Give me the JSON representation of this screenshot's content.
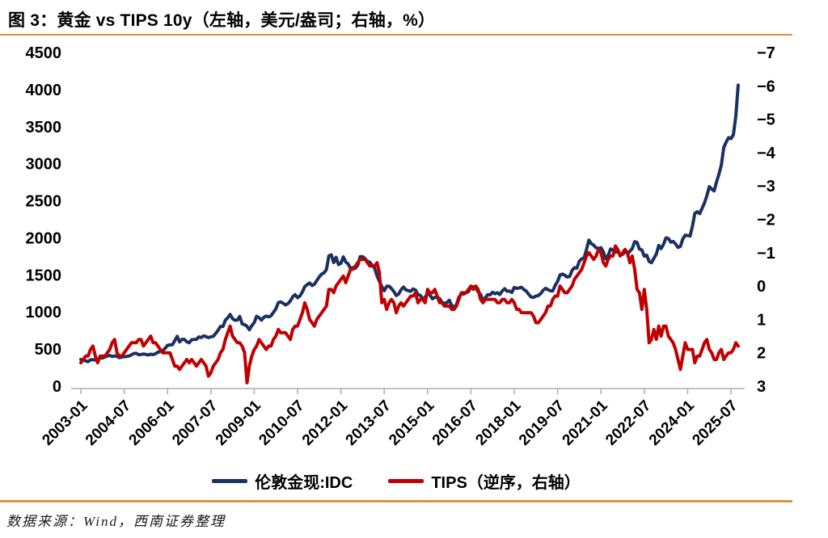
{
  "header": {
    "title": "图 3：黄金 vs TIPS 10y（左轴，美元/盎司；右轴，%）"
  },
  "footer": {
    "source": "数据来源：Wind，西南证券整理"
  },
  "colors": {
    "gold_line": "#1B3161",
    "tips_line": "#C00000",
    "divider": "#D9953F",
    "axis_line": "#ADADAD",
    "tick_text": "#000000"
  },
  "chart_data": {
    "type": "line",
    "title": "黄金 vs TIPS 10y（左轴，美元/盎司；右轴，%）",
    "x_frequency": "monthly",
    "x_start": "2003-01",
    "x_end": "2025-10",
    "x_tick_labels": [
      "2003-01",
      "2004-07",
      "2006-01",
      "2007-07",
      "2009-01",
      "2010-07",
      "2012-01",
      "2013-07",
      "2015-01",
      "2016-07",
      "2018-01",
      "2019-07",
      "2021-01",
      "2022-07",
      "2024-01",
      "2025-07"
    ],
    "x_tick_step_months": 18,
    "grid": "off",
    "legend_position": "bottom",
    "left_axis": {
      "label": "美元/盎司",
      "range": [
        0,
        4500
      ],
      "ticks": [
        4500,
        4000,
        3500,
        3000,
        2500,
        2000,
        1500,
        1000,
        500,
        0
      ]
    },
    "right_axis": {
      "label": "%",
      "range": [
        -7,
        3
      ],
      "inverted": true,
      "ticks": [
        -7,
        -6,
        -5,
        -4,
        -3,
        -2,
        -1,
        0,
        1,
        2,
        3
      ]
    },
    "series": [
      {
        "name": "伦敦金现:IDC",
        "axis": "left",
        "color": "#1B3161",
        "values": [
          360,
          352,
          340,
          330,
          355,
          356,
          352,
          362,
          379,
          380,
          392,
          408,
          414,
          400,
          408,
          402,
          384,
          392,
          398,
          401,
          406,
          422,
          440,
          442,
          424,
          426,
          434,
          428,
          420,
          432,
          424,
          438,
          456,
          470,
          477,
          510,
          550,
          556,
          558,
          612,
          672,
          596,
          632,
          630,
          598,
          585,
          627,
          630,
          631,
          665,
          655,
          679,
          667,
          655,
          665,
          672,
          712,
          754,
          806,
          803,
          890,
          922,
          968,
          910,
          889,
          890,
          940,
          839,
          829,
          807,
          760,
          816,
          858,
          943,
          924,
          890,
          928,
          946,
          934,
          949,
          996,
          1043,
          1127,
          1135,
          1118,
          1095,
          1113,
          1149,
          1205,
          1233,
          1193,
          1216,
          1271,
          1342,
          1370,
          1391,
          1356,
          1374,
          1424,
          1473,
          1511,
          1529,
          1573,
          1756,
          1772,
          1666,
          1739,
          1640,
          1656,
          1743,
          1674,
          1650,
          1586,
          1599,
          1590,
          1630,
          1745,
          1747,
          1721,
          1684,
          1671,
          1628,
          1592,
          1487,
          1414,
          1343,
          1286,
          1347,
          1348,
          1316,
          1276,
          1221,
          1244,
          1300,
          1336,
          1299,
          1288,
          1279,
          1311,
          1296,
          1237,
          1222,
          1176,
          1200,
          1251,
          1227,
          1178,
          1198,
          1199,
          1181,
          1128,
          1118,
          1125,
          1159,
          1086,
          1068,
          1097,
          1199,
          1246,
          1242,
          1260,
          1276,
          1337,
          1340,
          1327,
          1272,
          1238,
          1157,
          1192,
          1234,
          1231,
          1266,
          1246,
          1260,
          1236,
          1283,
          1314,
          1280,
          1282,
          1264,
          1331,
          1318,
          1325,
          1334,
          1303,
          1281,
          1238,
          1202,
          1198,
          1215,
          1222,
          1250,
          1292,
          1320,
          1301,
          1286,
          1284,
          1359,
          1413,
          1500,
          1511,
          1495,
          1471,
          1479,
          1561,
          1597,
          1591,
          1683,
          1716,
          1732,
          1843,
          1969,
          1922,
          1900,
          1866,
          1858,
          1868,
          1811,
          1718,
          1762,
          1850,
          1835,
          1807,
          1814,
          1777,
          1777,
          1820,
          1787,
          1817,
          1856,
          1948,
          1937,
          1848,
          1837,
          1753,
          1766,
          1681,
          1665,
          1725,
          1781,
          1898,
          1855,
          1913,
          1999,
          1992,
          1942,
          1951,
          1918,
          1871,
          1885,
          1984,
          2036,
          2031,
          2024,
          2160,
          2331,
          2351,
          2327,
          2398,
          2470,
          2568,
          2690,
          2657,
          2633,
          2752,
          2858,
          2983,
          3218,
          3289,
          3352,
          3338,
          3391,
          3643,
          4060
        ]
      },
      {
        "name": "TIPS（逆序，右轴）",
        "axis": "right",
        "color": "#C00000",
        "values": [
          2.3,
          2.2,
          2.1,
          2.1,
          1.9,
          1.8,
          2.1,
          2.3,
          2.1,
          2.1,
          2.1,
          2.0,
          1.9,
          1.7,
          1.6,
          2.0,
          2.1,
          2.1,
          2.0,
          1.9,
          1.8,
          1.7,
          1.7,
          1.7,
          1.6,
          1.6,
          1.8,
          1.7,
          1.6,
          1.5,
          1.7,
          1.7,
          1.8,
          1.9,
          2.0,
          2.0,
          2.0,
          2.0,
          2.2,
          2.4,
          2.4,
          2.5,
          2.4,
          2.3,
          2.2,
          2.3,
          2.2,
          2.3,
          2.4,
          2.3,
          2.2,
          2.3,
          2.4,
          2.7,
          2.6,
          2.4,
          2.3,
          2.2,
          2.0,
          1.9,
          1.6,
          1.4,
          1.2,
          1.5,
          1.6,
          1.7,
          1.7,
          1.8,
          2.0,
          2.9,
          2.4,
          2.1,
          1.9,
          1.8,
          1.6,
          1.7,
          1.8,
          1.9,
          1.8,
          1.8,
          1.6,
          1.5,
          1.3,
          1.4,
          1.4,
          1.4,
          1.5,
          1.6,
          1.3,
          1.2,
          1.2,
          1.0,
          0.8,
          0.5,
          0.7,
          1.0,
          1.1,
          1.2,
          1.0,
          0.9,
          0.8,
          0.7,
          0.6,
          0.1,
          0.1,
          0.2,
          0.0,
          -0.1,
          -0.2,
          -0.3,
          -0.1,
          -0.3,
          -0.5,
          -0.5,
          -0.6,
          -0.7,
          -0.8,
          -0.8,
          -0.8,
          -0.7,
          -0.6,
          -0.6,
          -0.6,
          -0.7,
          -0.4,
          0.5,
          0.4,
          0.7,
          0.5,
          0.4,
          0.5,
          0.8,
          0.6,
          0.5,
          0.6,
          0.5,
          0.4,
          0.3,
          0.3,
          0.2,
          0.5,
          0.4,
          0.4,
          0.5,
          0.1,
          0.2,
          0.2,
          0.1,
          0.3,
          0.5,
          0.5,
          0.6,
          0.6,
          0.6,
          0.7,
          0.7,
          0.6,
          0.4,
          0.2,
          0.2,
          0.2,
          0.1,
          0.0,
          0.1,
          0.0,
          0.1,
          0.4,
          0.5,
          0.4,
          0.4,
          0.4,
          0.4,
          0.4,
          0.5,
          0.5,
          0.4,
          0.4,
          0.5,
          0.5,
          0.4,
          0.5,
          0.7,
          0.7,
          0.8,
          0.8,
          0.8,
          0.8,
          0.8,
          0.9,
          1.1,
          1.1,
          1.0,
          0.9,
          0.8,
          0.6,
          0.6,
          0.4,
          0.3,
          0.3,
          0.0,
          0.1,
          0.2,
          0.2,
          0.1,
          0.0,
          -0.2,
          -0.3,
          -0.4,
          -0.5,
          -0.7,
          -0.9,
          -1.0,
          -0.9,
          -0.8,
          -0.9,
          -1.1,
          -1.0,
          -0.7,
          -0.6,
          -0.8,
          -0.9,
          -0.9,
          -1.2,
          -1.1,
          -0.9,
          -1.0,
          -1.1,
          -1.0,
          -0.7,
          -0.9,
          -0.5,
          0.1,
          0.2,
          0.7,
          0.1,
          0.7,
          1.7,
          1.6,
          1.3,
          1.6,
          1.2,
          1.5,
          1.2,
          1.2,
          1.5,
          1.6,
          1.7,
          1.9,
          2.2,
          2.5,
          2.1,
          1.7,
          1.9,
          1.9,
          1.9,
          2.3,
          2.1,
          2.1,
          1.9,
          1.7,
          1.6,
          1.9,
          2.0,
          2.2,
          2.2,
          2.0,
          1.9,
          2.2,
          2.1,
          2.0,
          2.0,
          1.9,
          1.7,
          1.8
        ]
      }
    ]
  }
}
